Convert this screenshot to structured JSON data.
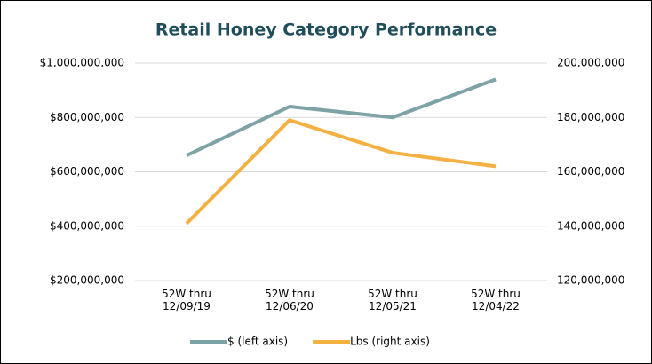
{
  "chart_data": {
    "type": "line",
    "title": "Retail Honey Category Performance",
    "categories": [
      "52W thru 12/09/19",
      "52W thru 12/06/20",
      "52W thru 12/05/21",
      "52W thru 12/04/22"
    ],
    "series": [
      {
        "name": "$ (left axis)",
        "color": "#7ea3a6",
        "values": [
          660000000,
          840000000,
          800000000,
          940000000
        ]
      },
      {
        "name": "Lbs (right axis)",
        "color": "#f4b041",
        "axis": "y2",
        "values": [
          141000000,
          179000000,
          167000000,
          162000000
        ]
      }
    ],
    "ylim": [
      200000000,
      1000000000
    ],
    "yticks": [
      {
        "value": 200000000,
        "label": "$200,000,000"
      },
      {
        "value": 400000000,
        "label": "$400,000,000"
      },
      {
        "value": 600000000,
        "label": "$600,000,000"
      },
      {
        "value": 800000000,
        "label": "$800,000,000"
      },
      {
        "value": 1000000000,
        "label": "$1,000,000,000"
      }
    ],
    "y2lim": [
      120000000,
      200000000
    ],
    "y2ticks": [
      {
        "value": 120000000,
        "label": "120,000,000"
      },
      {
        "value": 140000000,
        "label": "140,000,000"
      },
      {
        "value": 160000000,
        "label": "160,000,000"
      },
      {
        "value": 180000000,
        "label": "180,000,000"
      },
      {
        "value": 200000000,
        "label": "200,000,000"
      }
    ],
    "grid": true,
    "legend": "bottom"
  }
}
